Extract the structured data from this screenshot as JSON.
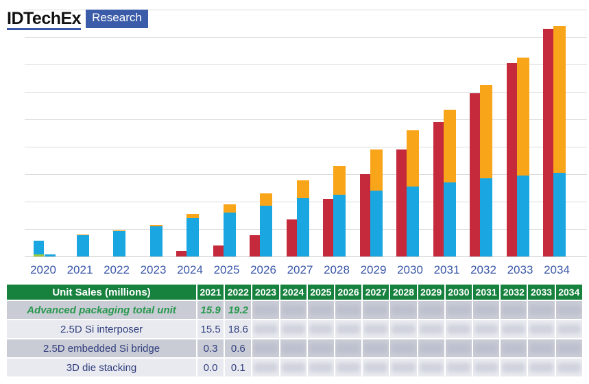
{
  "logo": {
    "brand": "IDTechEx",
    "badge": "Research"
  },
  "chart_data": {
    "type": "bar",
    "title": "Unit Sales (millions)",
    "x": [
      "2020",
      "2021",
      "2022",
      "2023",
      "2024",
      "2025",
      "2026",
      "2027",
      "2028",
      "2029",
      "2030",
      "2031",
      "2032",
      "2033",
      "2034"
    ],
    "ylim": [
      0,
      180
    ],
    "grid_step": 20,
    "grid": "horizontal-only",
    "legend_position": "none",
    "layout": "per year: left column = 3D die stacking (red); right column = stacked 2.5D Si interposer (blue) + 2.5D embedded Si bridge (orange)",
    "series": [
      {
        "name": "3D die stacking",
        "color": "#C42A3C",
        "values": [
          0,
          0.0,
          0.1,
          0.3,
          4,
          8,
          15.5,
          27,
          42,
          60,
          78,
          98,
          119,
          141,
          166
        ]
      },
      {
        "name": "2.5D Si interposer",
        "color": "#1AA7E1",
        "values": [
          10.3,
          15.5,
          18.6,
          22,
          28,
          32,
          37,
          42.5,
          45,
          48,
          51,
          54,
          57,
          59,
          61
        ]
      },
      {
        "name": "2.5D embedded Si bridge",
        "color": "#F9A51A",
        "values": [
          0,
          0.3,
          0.6,
          1,
          3,
          6,
          9,
          13,
          21,
          30,
          41,
          53,
          68,
          86,
          107
        ]
      }
    ],
    "extra_2020": {
      "green_segment": 1.4,
      "green_color": "#9BCB3C",
      "stub_blue": 1.4
    }
  },
  "xaxis": {
    "label_color": "#3A57A7"
  },
  "table": {
    "header_label": "Unit Sales (millions)",
    "years": [
      "2021",
      "2022",
      "2023",
      "2024",
      "2025",
      "2026",
      "2027",
      "2028",
      "2029",
      "2030",
      "2031",
      "2032",
      "2033",
      "2034"
    ],
    "rows": [
      {
        "label": "Advanced packaging total unit",
        "style": "total",
        "values": [
          "15.9",
          "19.2",
          null,
          null,
          null,
          null,
          null,
          null,
          null,
          null,
          null,
          null,
          null,
          null
        ]
      },
      {
        "label": "2.5D Si interposer",
        "style": "normal",
        "values": [
          "15.5",
          "18.6",
          null,
          null,
          null,
          null,
          null,
          null,
          null,
          null,
          null,
          null,
          null,
          null
        ]
      },
      {
        "label": "2.5D embedded Si bridge",
        "style": "normal",
        "values": [
          "0.3",
          "0.6",
          null,
          null,
          null,
          null,
          null,
          null,
          null,
          null,
          null,
          null,
          null,
          null
        ]
      },
      {
        "label": "3D die stacking",
        "style": "normal",
        "values": [
          "0.0",
          "0.1",
          null,
          null,
          null,
          null,
          null,
          null,
          null,
          null,
          null,
          null,
          null,
          null
        ]
      }
    ]
  }
}
